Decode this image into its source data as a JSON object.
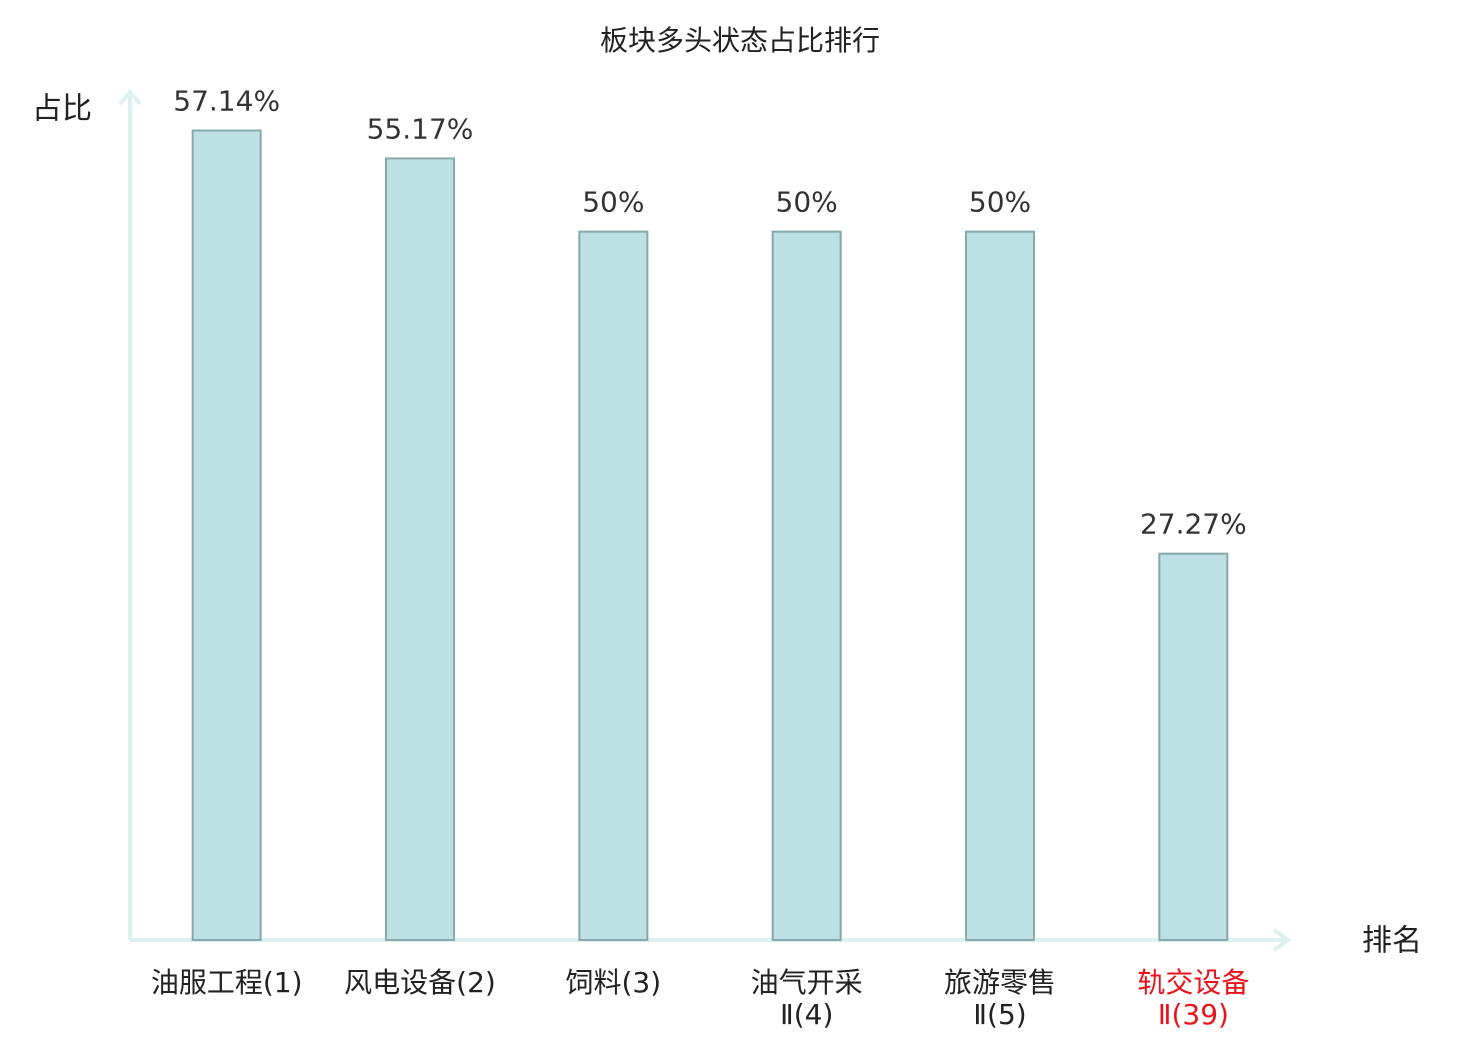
{
  "chart_data": {
    "type": "bar",
    "title": "板块多头状态占比排行",
    "y_label": "占比",
    "x_label": "排名",
    "categories": [
      [
        "油服工程(1)"
      ],
      [
        "风电设备(2)"
      ],
      [
        "饲料(3)"
      ],
      [
        "油气开采",
        "Ⅱ(4)"
      ],
      [
        "旅游零售",
        "Ⅱ(5)"
      ],
      [
        "轨交设备",
        "Ⅱ(39)"
      ]
    ],
    "category_colors": [
      "#222222",
      "#222222",
      "#222222",
      "#222222",
      "#222222",
      "#e8141c"
    ],
    "values": [
      57.14,
      55.17,
      50,
      50,
      50,
      27.27
    ],
    "value_labels": [
      "57.14%",
      "55.17%",
      "50%",
      "50%",
      "50%",
      "27.27%"
    ],
    "color": "#bce0e3",
    "ylim": [
      0,
      60
    ]
  }
}
